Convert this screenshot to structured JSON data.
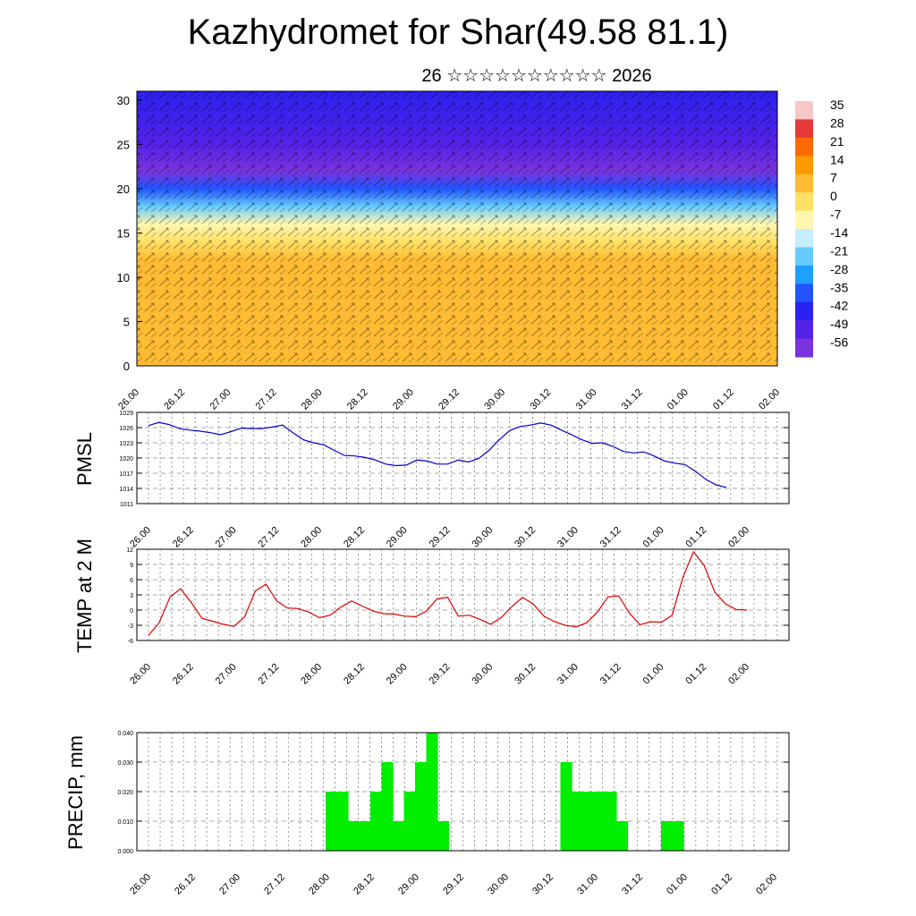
{
  "header": {
    "title": "Kazhydromet for Shar(49.58 81.1)",
    "subtitle": "26 ☆☆☆☆☆☆☆☆☆☆ 2026"
  },
  "colors": {
    "pmsl_line": "#0000cc",
    "temp_line": "#dd0000",
    "precip_bar": "#00ee00",
    "grid": "#555555"
  },
  "chart_data": [
    {
      "type": "heatmap",
      "name": "upper-air cross-section",
      "x_ticks": [
        "26.00",
        "26.12",
        "27.00",
        "27.12",
        "28.00",
        "28.12",
        "29.00",
        "29.12",
        "30.00",
        "30.12",
        "31.00",
        "31.12",
        "01.00",
        "01.12",
        "02.00"
      ],
      "y_ticks": [
        0,
        5,
        10,
        15,
        20,
        25,
        30
      ],
      "ylim": [
        0,
        31
      ],
      "colorbar_labels": [
        "35",
        "28",
        "21",
        "14",
        "7",
        "0",
        "-7",
        "-14",
        "-21",
        "-28",
        "-35",
        "-42",
        "-49",
        "-56"
      ],
      "colorbar_colors": [
        "#f8c8c8",
        "#e83a3a",
        "#ff6a00",
        "#ff9900",
        "#ffbb33",
        "#ffe066",
        "#fff7b0",
        "#c6ecff",
        "#66ccff",
        "#1ea0ff",
        "#2255ff",
        "#2a22ee",
        "#5522e8",
        "#7a33dd"
      ],
      "temperature_profile": [
        {
          "level": 0,
          "value": 4
        },
        {
          "level": 5,
          "value": 3
        },
        {
          "level": 9,
          "value": 2
        },
        {
          "level": 12,
          "value": 0
        },
        {
          "level": 14,
          "value": -5
        },
        {
          "level": 16,
          "value": -14
        },
        {
          "level": 18,
          "value": -28
        },
        {
          "level": 20,
          "value": -42
        },
        {
          "level": 22,
          "value": -60
        },
        {
          "level": 25,
          "value": -52
        },
        {
          "level": 31,
          "value": -48
        }
      ]
    },
    {
      "type": "line",
      "name": "PMSL",
      "ylabel": "PMSL",
      "ylim": [
        1011,
        1029
      ],
      "y_ticks": [
        1011,
        1014,
        1017,
        1020,
        1023,
        1026,
        1029
      ],
      "x_ticks": [
        "26.00",
        "26.12",
        "27.00",
        "27.12",
        "28.00",
        "28.12",
        "29.00",
        "29.12",
        "30.00",
        "30.12",
        "31.00",
        "31.12",
        "01.00",
        "01.12",
        "02.00"
      ],
      "x": [
        0,
        1,
        2,
        3,
        4,
        5,
        6,
        7,
        8,
        9,
        10,
        11,
        12,
        13,
        14,
        15,
        16,
        17,
        18,
        19,
        20,
        21,
        22,
        23,
        24,
        25,
        26,
        27,
        28,
        29,
        30,
        31,
        32,
        33,
        34,
        35,
        36,
        37,
        38,
        39,
        40,
        41,
        42,
        43,
        44,
        45,
        46,
        47,
        48,
        49,
        50,
        51,
        52,
        53,
        54,
        55,
        56
      ],
      "values": [
        1026.4,
        1027.0,
        1026.6,
        1025.8,
        1025.5,
        1025.3,
        1025.0,
        1024.6,
        1025.2,
        1025.9,
        1025.8,
        1025.8,
        1026.1,
        1026.5,
        1025.0,
        1023.6,
        1023.0,
        1022.6,
        1021.5,
        1020.5,
        1020.4,
        1020.1,
        1019.6,
        1018.8,
        1018.5,
        1018.6,
        1019.6,
        1019.4,
        1018.8,
        1018.8,
        1019.6,
        1019.2,
        1019.9,
        1021.5,
        1023.6,
        1025.4,
        1026.2,
        1026.5,
        1026.9,
        1026.5,
        1025.5,
        1024.6,
        1023.6,
        1022.9,
        1023.0,
        1022.3,
        1021.3,
        1021.0,
        1021.2,
        1020.4,
        1019.4,
        1019.0,
        1018.7,
        1017.4,
        1015.8,
        1014.7,
        1014.2
      ]
    },
    {
      "type": "line",
      "name": "TEMP at 2 M",
      "ylabel": "TEMP at 2 M",
      "ylim": [
        -6,
        12
      ],
      "y_ticks": [
        -6,
        -3,
        0,
        3,
        6,
        9,
        12
      ],
      "x_ticks": [
        "26.00",
        "26.12",
        "27.00",
        "27.12",
        "28.00",
        "28.12",
        "29.00",
        "29.12",
        "30.00",
        "30.12",
        "31.00",
        "31.12",
        "01.00",
        "01.12",
        "02.00"
      ],
      "x": [
        0,
        2,
        4,
        6,
        8,
        10,
        12,
        14,
        16,
        18,
        20,
        22,
        24,
        26,
        28,
        30,
        32,
        34,
        36,
        38,
        40,
        42,
        44,
        46,
        48,
        50,
        52,
        54,
        56,
        58,
        60,
        62,
        64,
        66,
        68,
        70,
        72,
        74,
        76,
        78,
        80,
        82,
        84,
        86,
        88,
        90,
        92,
        94,
        96,
        98,
        100,
        102,
        104,
        106,
        108,
        110,
        112
      ],
      "values": [
        -5.0,
        -2.5,
        2.5,
        4.2,
        1.5,
        -1.6,
        -2.2,
        -2.8,
        -3.2,
        -1.3,
        3.8,
        5.1,
        1.8,
        0.4,
        0.3,
        -0.4,
        -1.5,
        -1.0,
        0.6,
        1.8,
        0.8,
        -0.2,
        -0.7,
        -0.8,
        -1.2,
        -1.3,
        -0.2,
        2.2,
        2.5,
        -1.2,
        -1.0,
        -1.8,
        -2.8,
        -1.5,
        0.7,
        2.5,
        1.2,
        -1.2,
        -2.3,
        -3.0,
        -3.3,
        -2.5,
        -0.4,
        2.6,
        2.8,
        -0.6,
        -2.9,
        -2.3,
        -2.4,
        -1.0,
        6.4,
        11.5,
        8.8,
        3.5,
        1.2,
        0.1,
        0.0
      ]
    },
    {
      "type": "bar",
      "name": "PRECIP, mm",
      "ylabel": "PRECIP, mm",
      "ylim": [
        0,
        0.04
      ],
      "y_tick_labels": [
        "0.000",
        "0.010",
        "0.020",
        "0.030",
        "0.040"
      ],
      "x_ticks": [
        "26.00",
        "26.12",
        "27.00",
        "27.12",
        "28.00",
        "28.12",
        "29.00",
        "29.12",
        "30.00",
        "30.12",
        "31.00",
        "31.12",
        "01.00",
        "01.12",
        "02.00"
      ],
      "bars": [
        {
          "x": 16,
          "value": 0.02
        },
        {
          "x": 17,
          "value": 0.02
        },
        {
          "x": 18,
          "value": 0.01
        },
        {
          "x": 19,
          "value": 0.01
        },
        {
          "x": 20,
          "value": 0.02
        },
        {
          "x": 21,
          "value": 0.03
        },
        {
          "x": 22,
          "value": 0.01
        },
        {
          "x": 23,
          "value": 0.02
        },
        {
          "x": 24,
          "value": 0.03
        },
        {
          "x": 25,
          "value": 0.04
        },
        {
          "x": 26,
          "value": 0.01
        },
        {
          "x": 37,
          "value": 0.03
        },
        {
          "x": 38,
          "value": 0.02
        },
        {
          "x": 39,
          "value": 0.02
        },
        {
          "x": 40,
          "value": 0.02
        },
        {
          "x": 41,
          "value": 0.02
        },
        {
          "x": 42,
          "value": 0.01
        },
        {
          "x": 46,
          "value": 0.01
        },
        {
          "x": 47,
          "value": 0.01
        }
      ]
    }
  ]
}
